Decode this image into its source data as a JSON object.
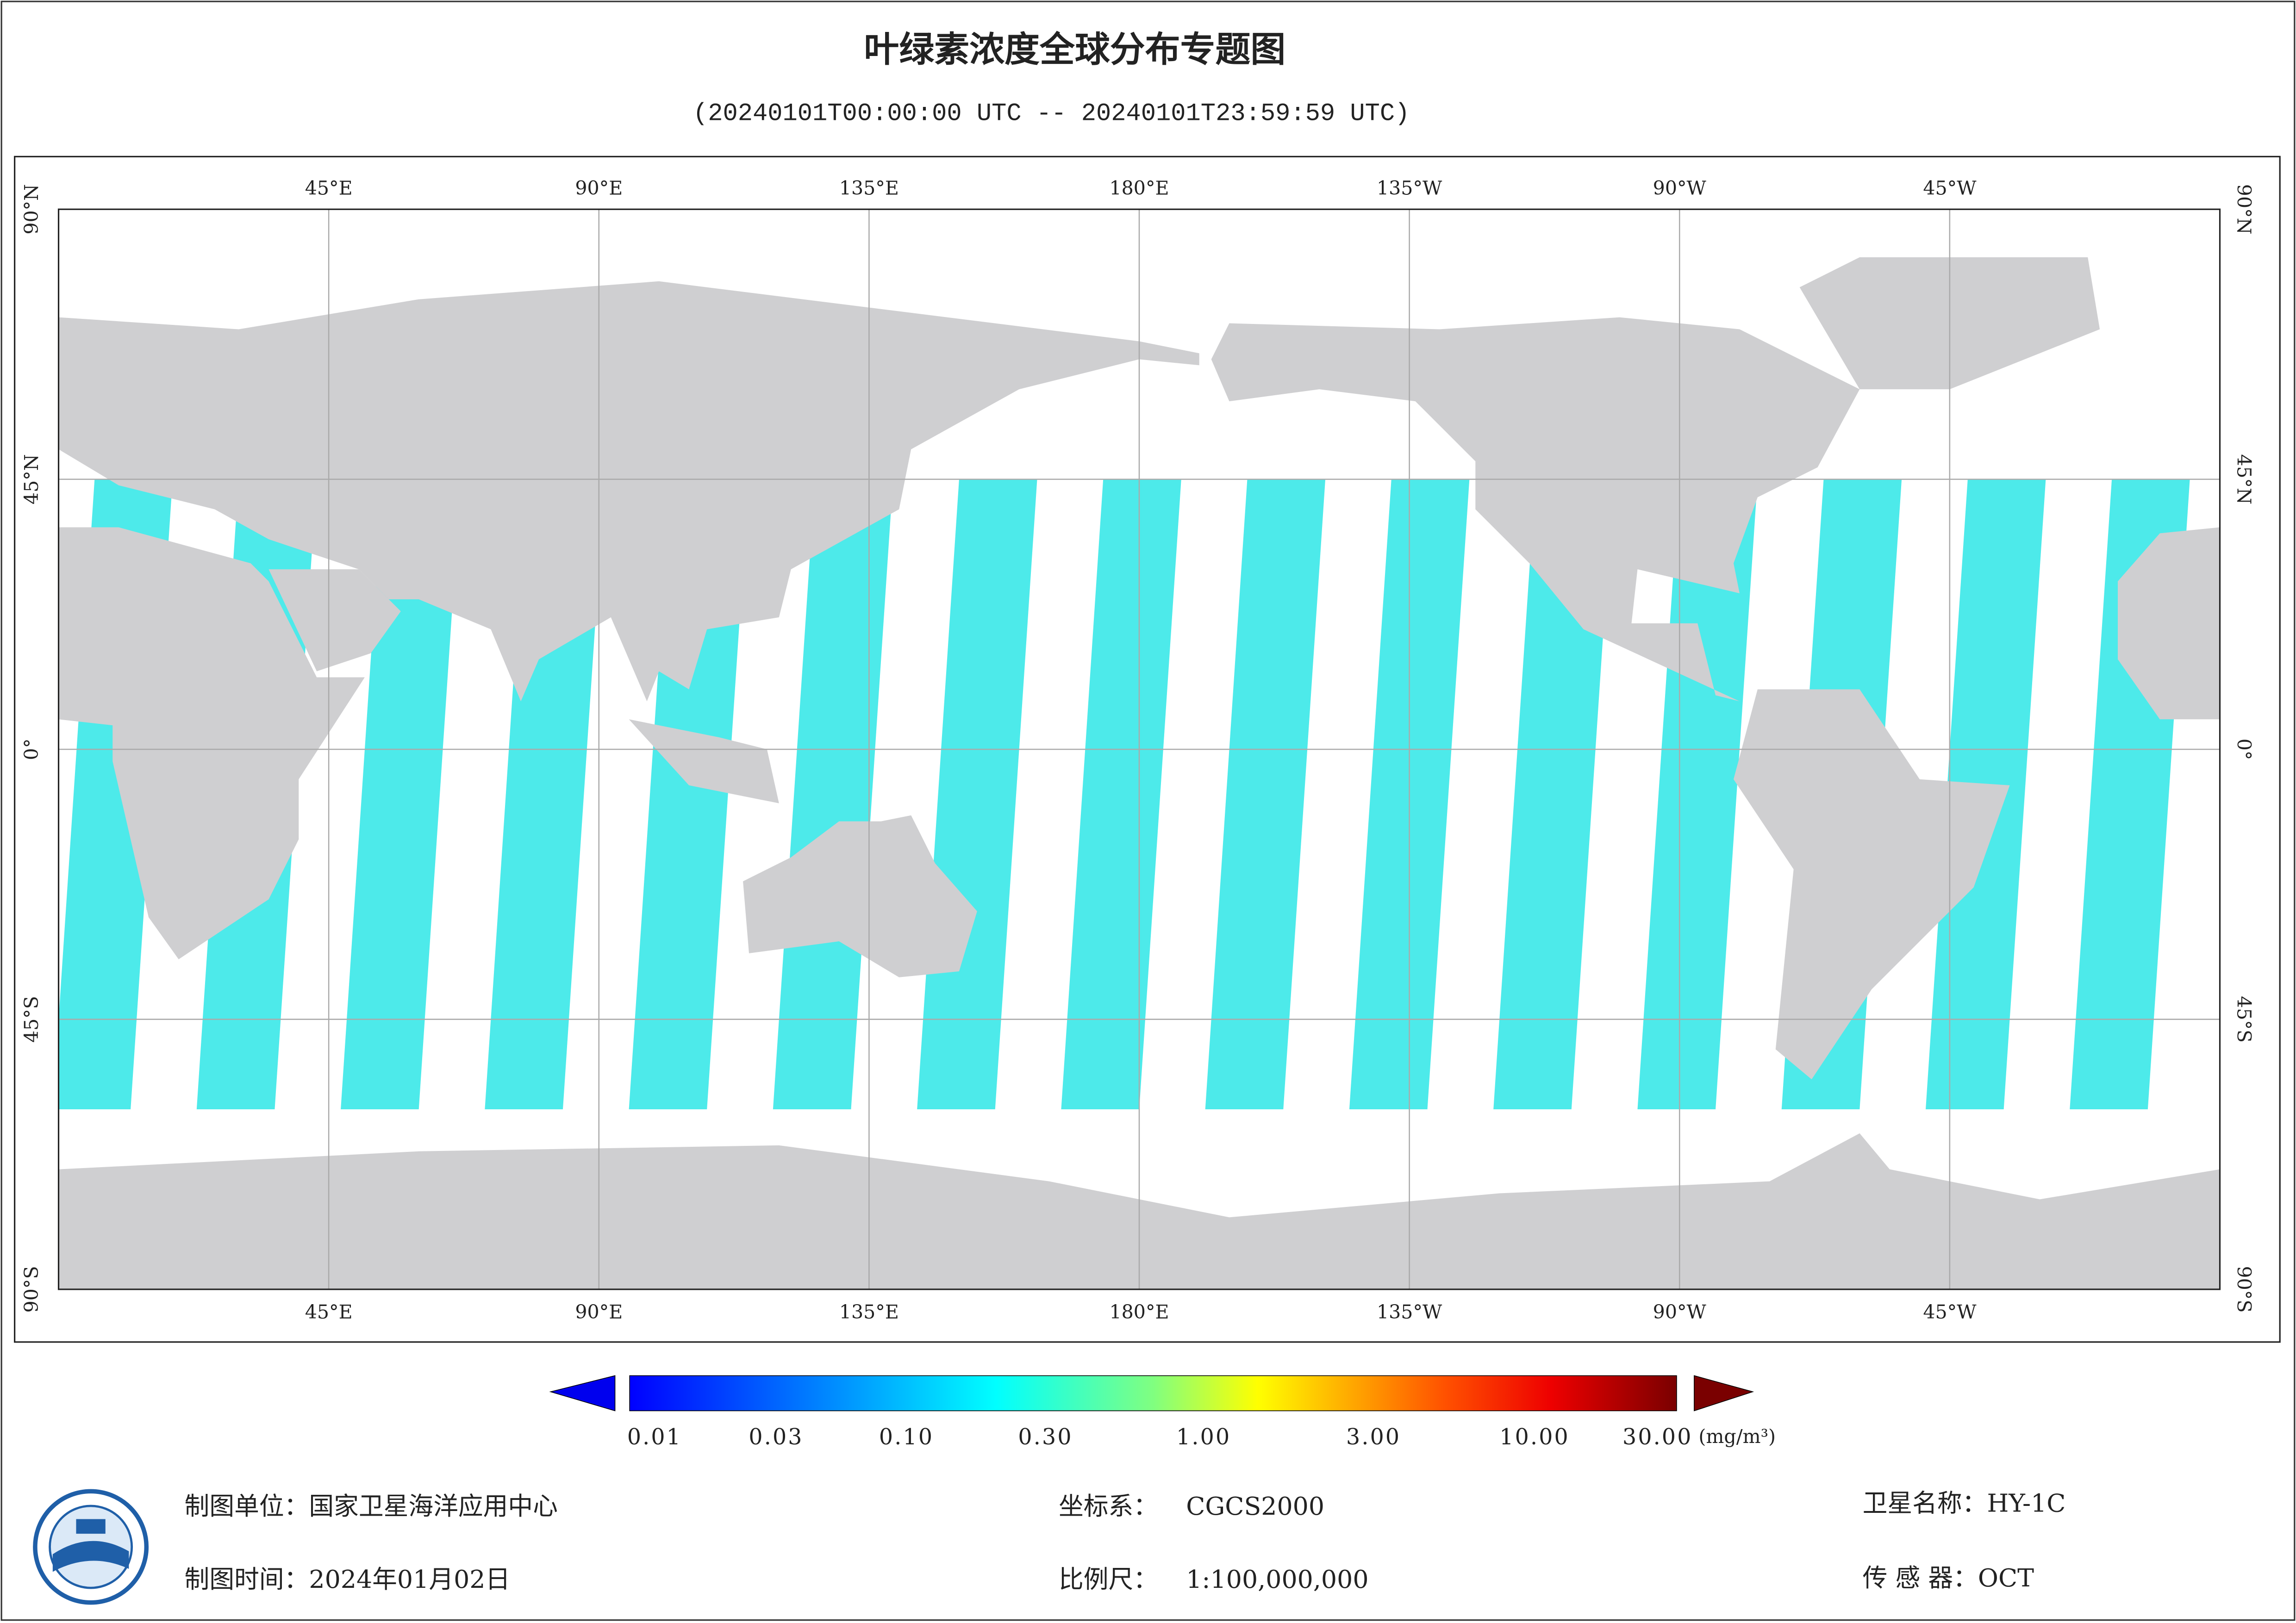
{
  "header": {
    "title": "叶绿素浓度全球分布专题图",
    "subtitle": "(20240101T00:00:00 UTC -- 20240101T23:59:59 UTC)"
  },
  "map": {
    "lon_labels": [
      "45°E",
      "90°E",
      "135°E",
      "180°E",
      "135°W",
      "90°W",
      "45°W"
    ],
    "lat_labels": [
      "90°N",
      "45°N",
      "0°",
      "45°S",
      "90°S"
    ]
  },
  "colorbar": {
    "labels": [
      "0.01",
      "0.03",
      "0.10",
      "0.30",
      "1.00",
      "3.00",
      "10.00",
      "30.00"
    ],
    "unit": "(mg/m³)"
  },
  "footer": {
    "items": [
      {
        "label": "制图单位：",
        "value": "国家卫星海洋应用中心"
      },
      {
        "label": "制图时间：",
        "value": "2024年01月02日"
      },
      {
        "label": "坐标系：",
        "value": "CGCS2000"
      },
      {
        "label": "比例尺：",
        "value": "1:100,000,000"
      },
      {
        "label": "卫星名称：",
        "value": "HY-1C"
      },
      {
        "label": "传 感 器：",
        "value": "OCT"
      }
    ]
  }
}
